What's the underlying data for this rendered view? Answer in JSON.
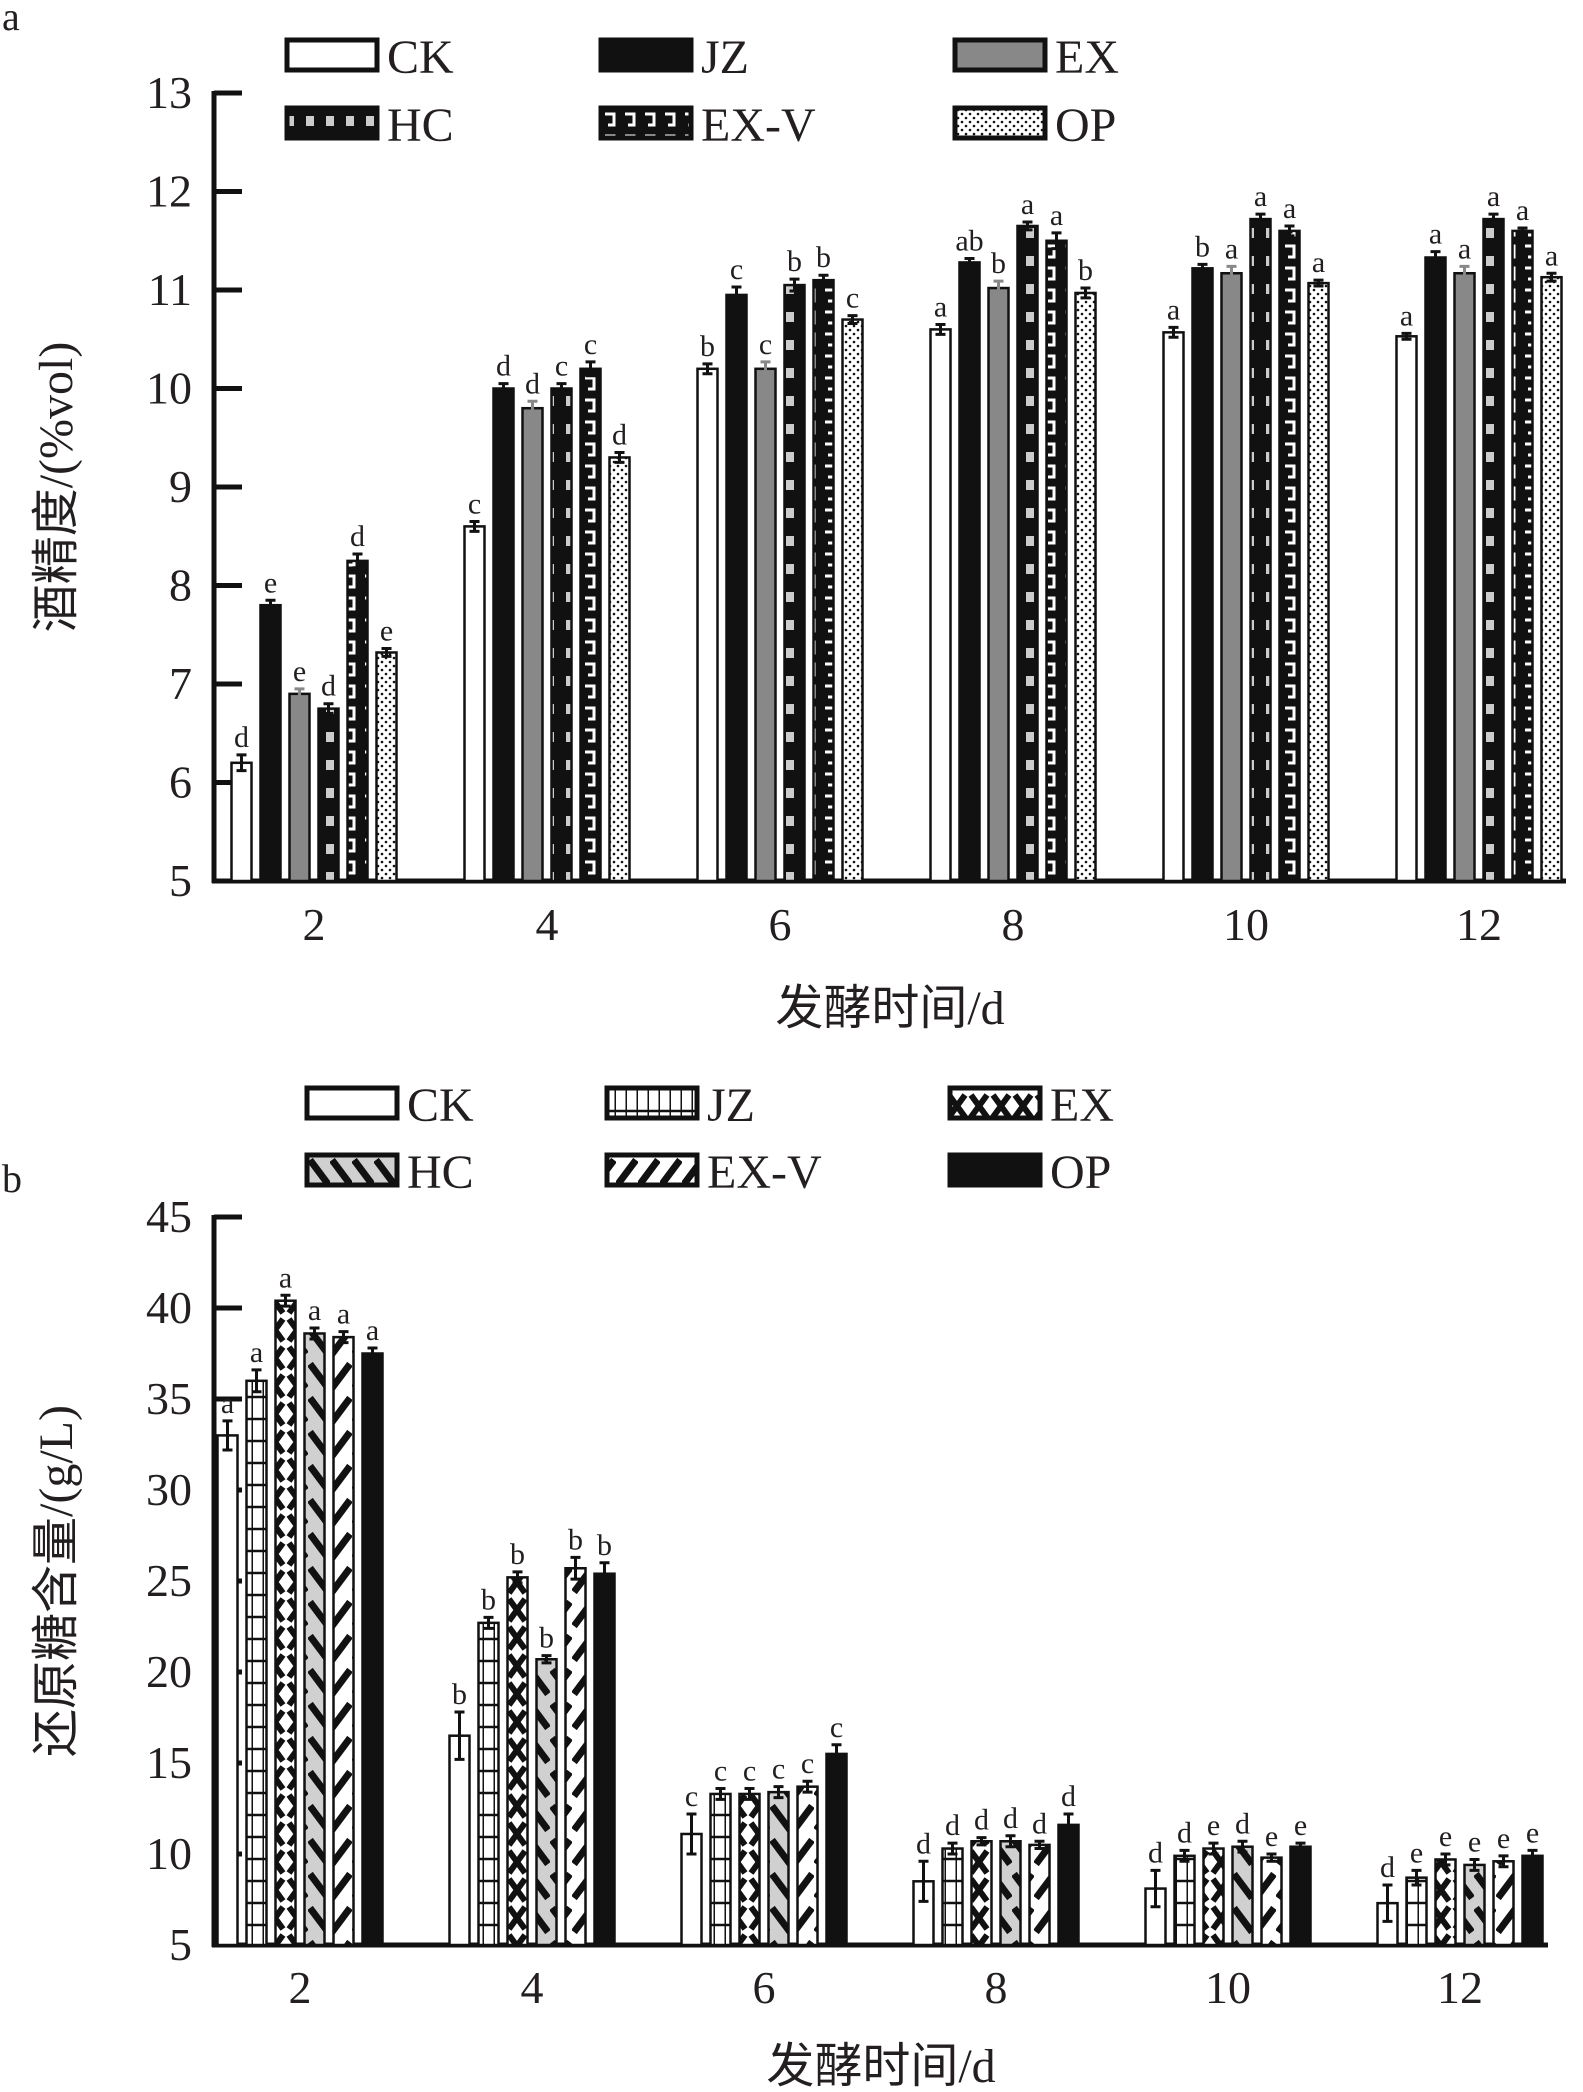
{
  "chart_data": [
    {
      "type": "bar",
      "panel_label": "a",
      "title": "",
      "xlabel": "发酵时间/d",
      "ylabel": "酒精度/(%vol)",
      "ylim": [
        5,
        13
      ],
      "yticks": [
        5,
        6,
        7,
        8,
        9,
        10,
        11,
        12,
        13
      ],
      "categories": [
        "2",
        "4",
        "6",
        "8",
        "10",
        "12"
      ],
      "legend_placement": "top",
      "series": [
        {
          "name": "CK",
          "pattern": "white",
          "values": [
            6.2,
            8.6,
            10.2,
            10.6,
            10.57,
            10.53
          ],
          "errors": [
            0.08,
            0.05,
            0.05,
            0.05,
            0.05,
            0.03
          ],
          "sig": [
            "d",
            "c",
            "b",
            "a",
            "a",
            "a"
          ]
        },
        {
          "name": "JZ",
          "pattern": "black",
          "values": [
            7.8,
            10.0,
            10.95,
            11.28,
            11.22,
            11.33
          ],
          "errors": [
            0.05,
            0.05,
            0.08,
            0.04,
            0.04,
            0.06
          ],
          "sig": [
            "e",
            "d",
            "c",
            "ab",
            "b",
            "a"
          ]
        },
        {
          "name": "EX",
          "pattern": "gray",
          "values": [
            6.9,
            9.8,
            10.2,
            11.02,
            11.17,
            11.17
          ],
          "errors": [
            0.05,
            0.07,
            0.07,
            0.07,
            0.07,
            0.07
          ],
          "sig": [
            "e",
            "d",
            "c",
            "b",
            "a",
            "a"
          ]
        },
        {
          "name": "HC",
          "pattern": "checker",
          "values": [
            6.75,
            10.0,
            11.05,
            11.65,
            11.72,
            11.72
          ],
          "errors": [
            0.05,
            0.05,
            0.06,
            0.04,
            0.05,
            0.05
          ],
          "sig": [
            "d",
            "c",
            "b",
            "a",
            "a",
            "a"
          ]
        },
        {
          "name": "EX-V",
          "pattern": "bracket",
          "values": [
            8.25,
            10.2,
            11.1,
            11.5,
            11.6,
            11.6
          ],
          "errors": [
            0.07,
            0.07,
            0.05,
            0.08,
            0.05,
            0.03
          ],
          "sig": [
            "d",
            "c",
            "b",
            "a",
            "a",
            "a"
          ]
        },
        {
          "name": "OP",
          "pattern": "dotted",
          "values": [
            7.32,
            9.3,
            10.7,
            10.97,
            11.07,
            11.13
          ],
          "errors": [
            0.04,
            0.05,
            0.04,
            0.05,
            0.03,
            0.04
          ],
          "sig": [
            "e",
            "d",
            "c",
            "b",
            "a",
            "a"
          ]
        }
      ]
    },
    {
      "type": "bar",
      "panel_label": "b",
      "title": "",
      "xlabel": "发酵时间/d",
      "ylabel": "还原糖含量/(g/L)",
      "ylim": [
        5,
        45
      ],
      "yticks": [
        5,
        10,
        15,
        20,
        25,
        30,
        35,
        40,
        45
      ],
      "categories": [
        "2",
        "4",
        "6",
        "8",
        "10",
        "12"
      ],
      "legend_placement": "top",
      "series": [
        {
          "name": "CK",
          "pattern": "white",
          "values": [
            33.0,
            16.5,
            11.1,
            8.5,
            8.1,
            7.3
          ],
          "errors": [
            0.8,
            1.3,
            1.1,
            1.1,
            1.0,
            1.0
          ],
          "sig": [
            "a",
            "b",
            "c",
            "d",
            "d",
            "d"
          ]
        },
        {
          "name": "JZ",
          "pattern": "hgrid",
          "values": [
            36.0,
            22.7,
            13.3,
            10.3,
            9.9,
            8.7
          ],
          "errors": [
            0.6,
            0.3,
            0.3,
            0.3,
            0.3,
            0.4
          ],
          "sig": [
            "a",
            "b",
            "c",
            "d",
            "d",
            "e"
          ]
        },
        {
          "name": "EX",
          "pattern": "xx",
          "values": [
            40.4,
            25.2,
            13.3,
            10.7,
            10.3,
            9.7
          ],
          "errors": [
            0.3,
            0.3,
            0.3,
            0.2,
            0.3,
            0.3
          ],
          "sig": [
            "a",
            "b",
            "c",
            "d",
            "e",
            "e"
          ]
        },
        {
          "name": "HC",
          "pattern": "backslash",
          "values": [
            38.6,
            20.7,
            13.4,
            10.7,
            10.4,
            9.4
          ],
          "errors": [
            0.3,
            0.2,
            0.3,
            0.3,
            0.3,
            0.3
          ],
          "sig": [
            "a",
            "b",
            "c",
            "d",
            "d",
            "e"
          ]
        },
        {
          "name": "EX-V",
          "pattern": "slash",
          "values": [
            38.4,
            25.7,
            13.7,
            10.5,
            9.8,
            9.6
          ],
          "errors": [
            0.3,
            0.6,
            0.3,
            0.2,
            0.2,
            0.3
          ],
          "sig": [
            "a",
            "b",
            "c",
            "d",
            "e",
            "e"
          ]
        },
        {
          "name": "OP",
          "pattern": "black",
          "values": [
            37.5,
            25.4,
            15.5,
            11.6,
            10.4,
            9.9
          ],
          "errors": [
            0.3,
            0.6,
            0.5,
            0.6,
            0.2,
            0.3
          ],
          "sig": [
            "a",
            "b",
            "c",
            "d",
            "e",
            "e"
          ]
        }
      ]
    }
  ]
}
